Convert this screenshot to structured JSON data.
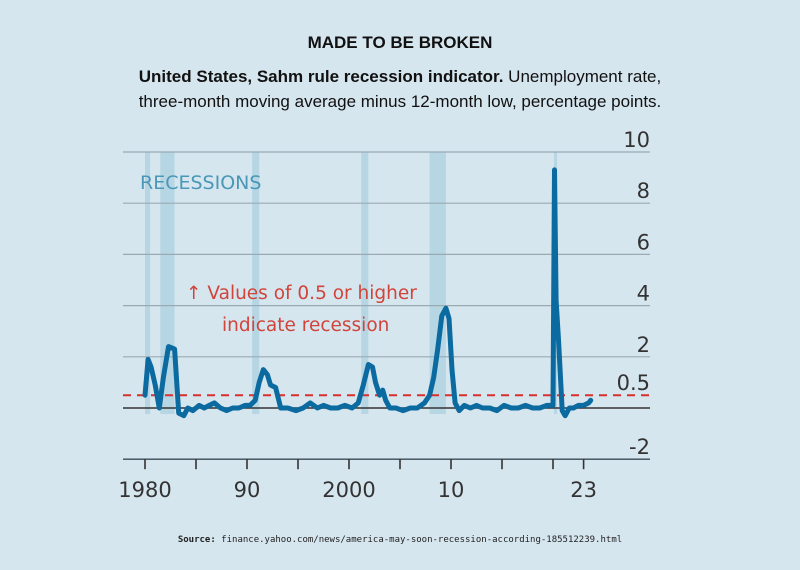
{
  "header": {
    "title": "MADE TO BE BROKEN",
    "subtitle_bold": "United States, Sahm rule recession indicator.",
    "subtitle_line1_rest": " Unemployment rate,",
    "subtitle_line2": "three-month moving average minus 12-month low, percentage points."
  },
  "source": {
    "label": "Source:",
    "text": " finance.yahoo.com/news/america-may-soon-recession-according-185512239.html"
  },
  "colors": {
    "background": "#d6e6ef",
    "line": "#0b6aa0",
    "threshold": "#d9302e",
    "recession_band": "#b7d6e4",
    "gridline": "#9aaab3",
    "annotation": "#d1443a",
    "recessions_label": "#4a97b8"
  },
  "chart_data": {
    "type": "line",
    "title": "MADE TO BE BROKEN",
    "xlabel": "",
    "ylabel": "percentage points",
    "ylim": [
      -2,
      10
    ],
    "xlim": [
      1977.8,
      2028.5
    ],
    "y_ticks": [
      {
        "value": 10,
        "label": "10"
      },
      {
        "value": 8,
        "label": "8"
      },
      {
        "value": 6,
        "label": "6"
      },
      {
        "value": 4,
        "label": "4"
      },
      {
        "value": 2,
        "label": "2"
      },
      {
        "value": 0.5,
        "label": "0.5"
      },
      {
        "value": -2,
        "label": "-2"
      }
    ],
    "x_ticks": [
      1980,
      1985,
      1990,
      1995,
      2000,
      2005,
      2010,
      2015,
      2020,
      2023
    ],
    "x_tick_labels": [
      {
        "value": 1980,
        "label": "1980"
      },
      {
        "value": 1990,
        "label": "90"
      },
      {
        "value": 2000,
        "label": "2000"
      },
      {
        "value": 2010,
        "label": "10"
      },
      {
        "value": 2023,
        "label": "23"
      }
    ],
    "grid": true,
    "threshold": {
      "value": 0.5,
      "style": "dashed"
    },
    "annotations": {
      "recessions_label": "RECESSIONS",
      "threshold_note_line1": "↑ Values of 0.5 or higher",
      "threshold_note_line2": "indicate recession"
    },
    "recessions": [
      {
        "start": 1980.0,
        "end": 1980.5
      },
      {
        "start": 1981.5,
        "end": 1982.9
      },
      {
        "start": 1990.5,
        "end": 1991.2
      },
      {
        "start": 2001.2,
        "end": 2001.9
      },
      {
        "start": 2007.9,
        "end": 2009.5
      },
      {
        "start": 2020.1,
        "end": 2020.4
      }
    ],
    "series": [
      {
        "name": "Sahm rule recession indicator",
        "x": [
          1980.0,
          1980.3,
          1980.6,
          1981.0,
          1981.4,
          1981.8,
          1982.3,
          1982.9,
          1983.3,
          1983.8,
          1984.2,
          1984.7,
          1985.3,
          1985.8,
          1986.3,
          1986.8,
          1987.4,
          1988.0,
          1988.6,
          1989.2,
          1989.8,
          1990.3,
          1990.8,
          1991.2,
          1991.6,
          1992.0,
          1992.3,
          1992.8,
          1993.3,
          1994.0,
          1994.8,
          1995.5,
          1996.2,
          1996.9,
          1997.5,
          1998.2,
          1998.9,
          1999.6,
          2000.3,
          2000.9,
          2001.4,
          2001.9,
          2002.3,
          2002.6,
          2003.0,
          2003.3,
          2003.6,
          2004.0,
          2004.6,
          2005.3,
          2006.0,
          2006.7,
          2007.4,
          2007.9,
          2008.3,
          2008.7,
          2009.1,
          2009.5,
          2009.8,
          2010.1,
          2010.4,
          2010.8,
          2011.3,
          2011.9,
          2012.5,
          2013.1,
          2013.8,
          2014.5,
          2015.2,
          2015.9,
          2016.6,
          2017.3,
          2018.0,
          2018.7,
          2019.4,
          2020.0,
          2020.15,
          2020.3,
          2020.55,
          2020.9,
          2021.2,
          2021.6,
          2022.0,
          2022.5,
          2023.0,
          2023.5,
          2023.7
        ],
        "values": [
          0.5,
          1.9,
          1.6,
          0.9,
          0.0,
          1.2,
          2.4,
          2.3,
          -0.2,
          -0.3,
          0.0,
          -0.1,
          0.1,
          0.0,
          0.1,
          0.2,
          0.0,
          -0.1,
          0.0,
          0.0,
          0.1,
          0.1,
          0.3,
          1.0,
          1.5,
          1.3,
          0.9,
          0.8,
          0.0,
          0.0,
          -0.1,
          0.0,
          0.2,
          0.0,
          0.1,
          0.0,
          0.0,
          0.1,
          0.0,
          0.2,
          0.9,
          1.7,
          1.6,
          1.0,
          0.5,
          0.7,
          0.3,
          0.0,
          0.0,
          -0.1,
          0.0,
          0.0,
          0.2,
          0.5,
          1.2,
          2.3,
          3.6,
          3.9,
          3.5,
          1.5,
          0.2,
          -0.1,
          0.1,
          0.0,
          0.1,
          0.0,
          0.0,
          -0.1,
          0.1,
          0.0,
          0.0,
          0.1,
          0.0,
          0.0,
          0.1,
          0.1,
          9.3,
          4.2,
          2.6,
          -0.1,
          -0.3,
          0.0,
          0.0,
          0.1,
          0.1,
          0.2,
          0.3
        ]
      }
    ]
  }
}
